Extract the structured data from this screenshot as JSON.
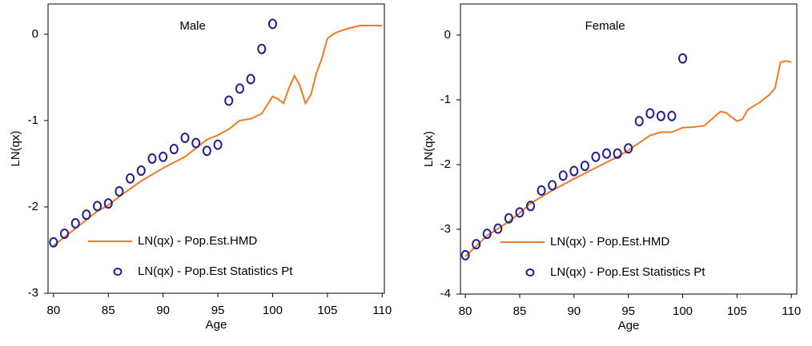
{
  "chart_data": [
    {
      "type": "line",
      "title": "Male",
      "xlabel": "Age",
      "ylabel": "LN(qx)",
      "xlim": [
        79.5,
        110.2
      ],
      "ylim": [
        -3,
        0.35
      ],
      "xticks": [
        80,
        85,
        90,
        95,
        100,
        105,
        110
      ],
      "yticks": [
        -3,
        -2,
        -1,
        0
      ],
      "legend": "lower center",
      "series": [
        {
          "name": "LN(qx) - Pop.Est.HMD",
          "color": "#f47920",
          "type": "line",
          "x": [
            80,
            82,
            84,
            85,
            86,
            88,
            90,
            92,
            94,
            95,
            96,
            97,
            98,
            99,
            100,
            100.5,
            101,
            101.5,
            102,
            102.5,
            103,
            103.5,
            104,
            104.5,
            105,
            105.5,
            106,
            107,
            108,
            110
          ],
          "values": [
            -2.45,
            -2.25,
            -2.05,
            -1.98,
            -1.88,
            -1.7,
            -1.55,
            -1.42,
            -1.22,
            -1.17,
            -1.1,
            -1.0,
            -0.98,
            -0.92,
            -0.72,
            -0.75,
            -0.8,
            -0.62,
            -0.48,
            -0.6,
            -0.8,
            -0.7,
            -0.45,
            -0.28,
            -0.05,
            0.0,
            0.03,
            0.07,
            0.1,
            0.1
          ]
        },
        {
          "name": "LN(qx) - Pop.Est Statistics Pt",
          "color": "#1f1f8f",
          "type": "scatter",
          "x": [
            80,
            81,
            82,
            83,
            84,
            85,
            86,
            87,
            88,
            89,
            90,
            91,
            92,
            93,
            94,
            95,
            96,
            97,
            98,
            99,
            100
          ],
          "values": [
            -2.41,
            -2.31,
            -2.19,
            -2.09,
            -1.99,
            -1.96,
            -1.82,
            -1.67,
            -1.58,
            -1.44,
            -1.42,
            -1.33,
            -1.2,
            -1.26,
            -1.35,
            -1.28,
            -0.77,
            -0.63,
            -0.52,
            -0.17,
            0.12
          ]
        }
      ]
    },
    {
      "type": "line",
      "title": "Female",
      "xlabel": "Age",
      "ylabel": "LN(qx)",
      "xlim": [
        79.55,
        110.5
      ],
      "ylim": [
        -4,
        0.48
      ],
      "xticks": [
        80,
        85,
        90,
        95,
        100,
        105,
        110
      ],
      "yticks": [
        -4,
        -3,
        -2,
        -1,
        0
      ],
      "legend": "lower center",
      "series": [
        {
          "name": "LN(qx) - Pop.Est.HMD",
          "color": "#f47920",
          "type": "line",
          "x": [
            80,
            82,
            84,
            85,
            86,
            88,
            90,
            92,
            94,
            95,
            97,
            98,
            99,
            100,
            101,
            102,
            103,
            103.5,
            104,
            105,
            105.5,
            106,
            107,
            108,
            108.5,
            109,
            109.5,
            110
          ],
          "values": [
            -3.42,
            -3.1,
            -2.88,
            -2.75,
            -2.6,
            -2.4,
            -2.22,
            -2.05,
            -1.88,
            -1.78,
            -1.55,
            -1.5,
            -1.5,
            -1.43,
            -1.42,
            -1.4,
            -1.25,
            -1.18,
            -1.2,
            -1.33,
            -1.3,
            -1.15,
            -1.05,
            -0.92,
            -0.82,
            -0.42,
            -0.4,
            -0.42
          ]
        },
        {
          "name": "LN(qx) - Pop.Est Statistics Pt",
          "color": "#1f1f8f",
          "type": "scatter",
          "x": [
            80,
            81,
            82,
            83,
            84,
            85,
            86,
            87,
            88,
            89,
            90,
            91,
            92,
            93,
            94,
            95,
            96,
            97,
            98,
            99,
            100
          ],
          "values": [
            -3.4,
            -3.23,
            -3.07,
            -2.99,
            -2.83,
            -2.74,
            -2.64,
            -2.4,
            -2.32,
            -2.17,
            -2.1,
            -2.02,
            -1.88,
            -1.83,
            -1.83,
            -1.75,
            -1.33,
            -1.21,
            -1.25,
            -1.25,
            -0.36
          ]
        }
      ]
    }
  ]
}
